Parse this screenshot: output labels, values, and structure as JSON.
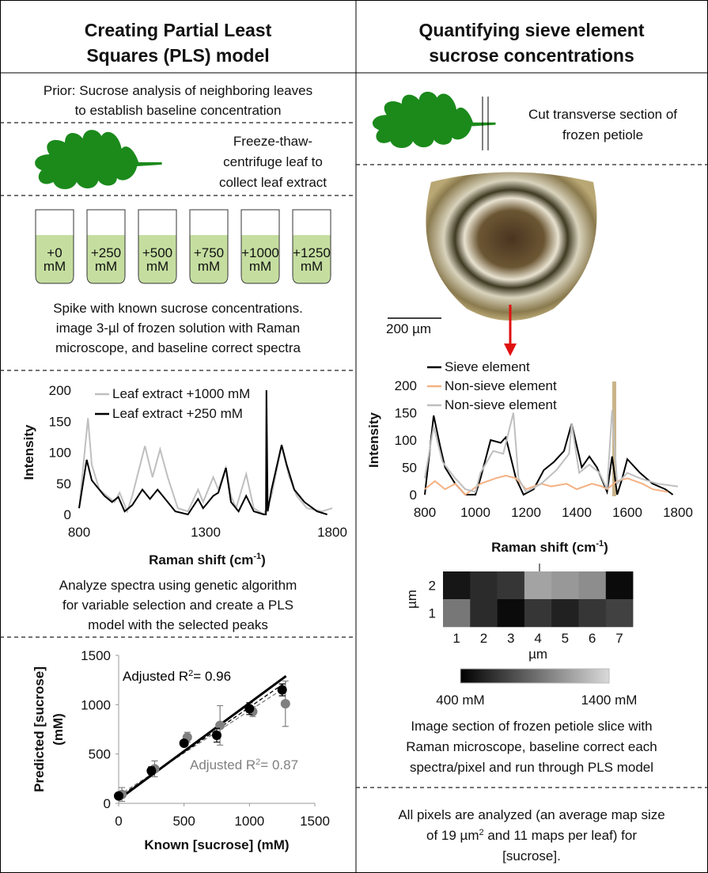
{
  "left": {
    "title": [
      "Creating Partial Least",
      "Squares (PLS) model"
    ],
    "prior": [
      "Prior: Sucrose analysis of neighboring leaves",
      "to establish baseline concentration"
    ],
    "extract": [
      "Freeze-thaw-",
      "centrifuge leaf to",
      "collect leaf extract"
    ],
    "tubes": [
      {
        "amount": "+0",
        "unit": "mM"
      },
      {
        "amount": "+250",
        "unit": "mM"
      },
      {
        "amount": "+500",
        "unit": "mM"
      },
      {
        "amount": "+750",
        "unit": "mM"
      },
      {
        "amount": "+1000",
        "unit": "mM"
      },
      {
        "amount": "+1250",
        "unit": "mM"
      }
    ],
    "spike": [
      "Spike with known sucrose concentrations.",
      "image 3-µl of frozen solution with Raman",
      "microscope, and baseline correct spectra"
    ],
    "spectrum": {
      "type": "line",
      "xlabel": [
        "Raman shift (cm",
        "-1",
        ")"
      ],
      "ylabel": "Intensity",
      "xlim": [
        800,
        1800
      ],
      "xticks": [
        800,
        1300,
        1800
      ],
      "ylim": [
        0,
        200
      ],
      "yticks": [
        0,
        50,
        100,
        150,
        200
      ],
      "series": [
        {
          "name": "Leaf extract +1000 mM",
          "color": "#bfbfbf",
          "x": [
            800,
            835,
            850,
            880,
            910,
            940,
            960,
            990,
            1010,
            1060,
            1090,
            1120,
            1150,
            1190,
            1230,
            1270,
            1290,
            1330,
            1350,
            1380,
            1400,
            1420,
            1460,
            1490,
            1530,
            1560,
            1600,
            1630,
            1660,
            1700,
            1760,
            1800
          ],
          "values": [
            10,
            155,
            80,
            40,
            30,
            20,
            35,
            5,
            30,
            110,
            60,
            105,
            60,
            10,
            5,
            40,
            20,
            60,
            40,
            75,
            30,
            10,
            65,
            10,
            0,
            30,
            110,
            60,
            30,
            10,
            5,
            10
          ]
        },
        {
          "name": "Leaf extract +250 mM",
          "color": "#000000",
          "x": [
            800,
            830,
            850,
            870,
            900,
            930,
            955,
            980,
            1010,
            1050,
            1080,
            1110,
            1140,
            1180,
            1230,
            1270,
            1290,
            1330,
            1350,
            1380,
            1400,
            1430,
            1460,
            1490,
            1530,
            1538,
            1540,
            1545,
            1560,
            1600,
            1620,
            1650,
            1690,
            1740,
            1780
          ],
          "values": [
            10,
            88,
            55,
            45,
            30,
            20,
            28,
            5,
            15,
            40,
            25,
            40,
            25,
            5,
            0,
            25,
            10,
            30,
            35,
            75,
            20,
            5,
            30,
            5,
            0,
            0,
            200,
            5,
            40,
            112,
            80,
            40,
            20,
            5,
            0
          ]
        }
      ]
    },
    "analyze": [
      "Analyze spectra using genetic algorithm",
      "for variable selection and create a PLS",
      "model with the selected peaks"
    ],
    "regression": {
      "type": "scatter",
      "xlabel": "Known [sucrose] (mM)",
      "ylabel": [
        "Predicted [sucrose]",
        "(mM)"
      ],
      "xlim": [
        0,
        1500
      ],
      "xticks": [
        0,
        500,
        1000,
        1500
      ],
      "ylim": [
        0,
        1500
      ],
      "yticks": [
        0,
        500,
        1000,
        1500
      ],
      "series": [
        {
          "color": "#808080",
          "x": [
            25,
            275,
            525,
            775,
            1025,
            1275
          ],
          "values": [
            90,
            350,
            670,
            790,
            930,
            1010
          ],
          "errors": [
            70,
            80,
            50,
            200,
            50,
            230
          ]
        },
        {
          "color": "#000000",
          "x": [
            0,
            250,
            500,
            750,
            1000,
            1250
          ],
          "values": [
            75,
            330,
            610,
            690,
            960,
            1150
          ],
          "errors": [
            20,
            40,
            30,
            70,
            60,
            60
          ]
        }
      ],
      "fits": [
        {
          "color": "#808080",
          "dash": true,
          "x": [
            0,
            1280
          ],
          "values": [
            80,
            1180
          ]
        },
        {
          "color": "#000000",
          "dash": true,
          "x": [
            0,
            1280
          ],
          "values": [
            60,
            1230
          ]
        },
        {
          "color": "#000000",
          "dash": false,
          "x": [
            0,
            1280
          ],
          "values": [
            40,
            1290
          ]
        }
      ],
      "annotations": [
        {
          "parts": [
            "Adjusted R",
            "2",
            "= 0.96"
          ],
          "color": "#000000"
        },
        {
          "parts": [
            "Adjusted R",
            "2",
            "= 0.87"
          ],
          "color": "#808080"
        }
      ]
    }
  },
  "right": {
    "title": [
      "Quantifying sieve element",
      "sucrose concentrations"
    ],
    "cut": [
      "Cut transverse section of",
      "frozen petiole"
    ],
    "scale_bar": "200 µm",
    "spectrum": {
      "type": "line",
      "xlabel": [
        "Raman shift (cm",
        "-1",
        ")"
      ],
      "ylabel": "Intensity",
      "xlim": [
        800,
        1800
      ],
      "xticks": [
        800,
        1000,
        1200,
        1400,
        1600,
        1800
      ],
      "ylim": [
        0,
        200
      ],
      "yticks": [
        0,
        50,
        100,
        150,
        200
      ],
      "series": [
        {
          "name": "Sieve element",
          "color": "#000000",
          "x": [
            800,
            835,
            860,
            880,
            920,
            960,
            1000,
            1020,
            1060,
            1100,
            1120,
            1160,
            1190,
            1230,
            1270,
            1310,
            1350,
            1380,
            1420,
            1450,
            1480,
            1520,
            1540,
            1560,
            1580,
            1600,
            1650,
            1700,
            1750,
            1780
          ],
          "values": [
            0,
            145,
            90,
            50,
            20,
            0,
            0,
            30,
            100,
            95,
            105,
            30,
            0,
            10,
            45,
            60,
            80,
            130,
            50,
            70,
            50,
            5,
            70,
            0,
            30,
            65,
            40,
            20,
            10,
            0
          ]
        },
        {
          "name": "Non-sieve element",
          "color": "#f4b183",
          "x": [
            800,
            840,
            880,
            920,
            960,
            1020,
            1080,
            1120,
            1160,
            1200,
            1260,
            1300,
            1360,
            1400,
            1460,
            1500,
            1520,
            1560,
            1600,
            1660,
            1700,
            1760
          ],
          "values": [
            10,
            25,
            10,
            20,
            0,
            20,
            30,
            35,
            30,
            10,
            20,
            15,
            20,
            10,
            20,
            15,
            10,
            25,
            30,
            20,
            10,
            5
          ]
        },
        {
          "name": "Non-sieve element",
          "color": "#bfbfbf",
          "x": [
            800,
            835,
            870,
            920,
            960,
            1000,
            1020,
            1070,
            1110,
            1150,
            1170,
            1200,
            1260,
            1320,
            1370,
            1380,
            1410,
            1450,
            1490,
            1520,
            1540,
            1560,
            1600,
            1650,
            1720,
            1800
          ],
          "values": [
            30,
            125,
            60,
            30,
            10,
            5,
            40,
            80,
            75,
            150,
            30,
            5,
            20,
            45,
            75,
            130,
            40,
            55,
            40,
            10,
            155,
            20,
            40,
            30,
            20,
            15
          ]
        }
      ]
    },
    "heatmap": {
      "type": "heatmap",
      "xcategories": [
        1,
        2,
        3,
        4,
        5,
        6,
        7
      ],
      "ycategories": [
        2,
        1
      ],
      "xlabel": "µm",
      "ylabel": "µm",
      "z": [
        [
          500,
          600,
          650,
          1150,
          1100,
          1050,
          450
        ],
        [
          950,
          600,
          450,
          650,
          550,
          650,
          700
        ]
      ],
      "zlim": [
        400,
        1400
      ],
      "colorbar_ticks": [
        {
          "value": 400,
          "label": "400 mM"
        },
        {
          "value": 1400,
          "label": "1400 mM"
        }
      ]
    },
    "image_text": [
      "Image section of frozen petiole slice with",
      "Raman microscope, baseline correct each",
      "spectra/pixel and run through PLS model"
    ],
    "pixels_text": [
      "All pixels are analyzed (an average map size",
      [
        "of 19 µm",
        "2",
        " and 11 maps per leaf) for"
      ],
      "[sucrose]."
    ]
  }
}
